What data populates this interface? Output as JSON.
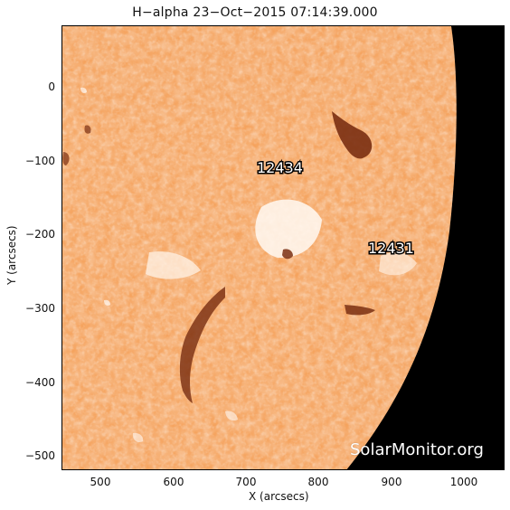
{
  "title": "H−alpha 23−Oct−2015 07:14:39.000",
  "axes": {
    "x_label": "X (arcsecs)",
    "y_label": "Y (arcsecs)",
    "x_ticks": [
      "500",
      "600",
      "700",
      "800",
      "900",
      "1000"
    ],
    "y_ticks": [
      "0",
      "−100",
      "−200",
      "−300",
      "−400",
      "−500"
    ]
  },
  "regions": [
    {
      "id": "12434",
      "label": "12434"
    },
    {
      "id": "12431",
      "label": "12431"
    }
  ],
  "watermark": "SolarMonitor.org",
  "colors": {
    "background": "#ffffff",
    "solar_disk_base": "#f5a35e",
    "solar_disk_light": "#fbe4cf",
    "filament_dark": "#7a2f12",
    "space": "#000000"
  }
}
